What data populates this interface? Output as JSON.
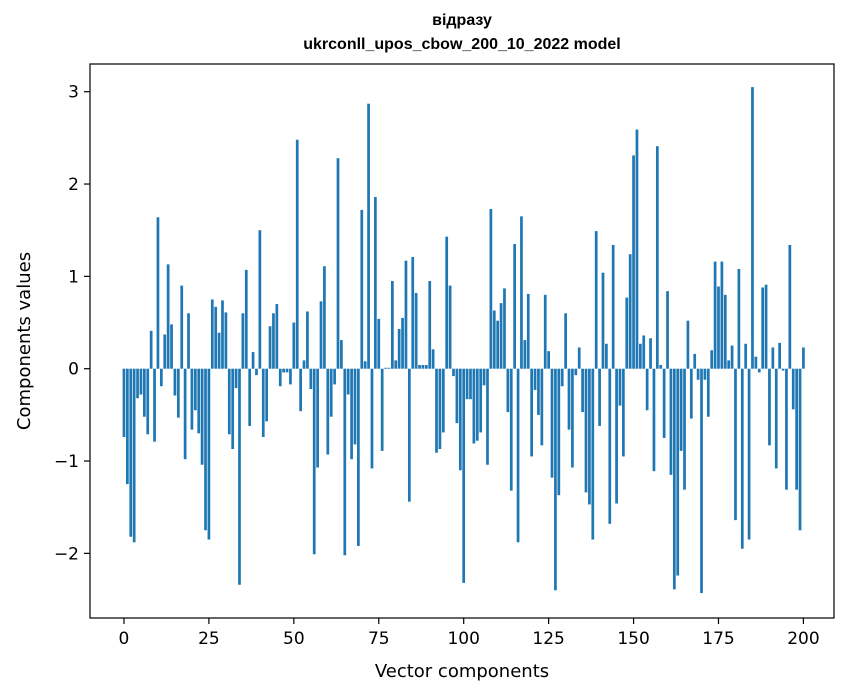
{
  "chart_data": {
    "type": "bar",
    "title_line1": "відразу",
    "title_line2": "ukrconll_upos_cbow_200_10_2022 model",
    "xlabel": "Vector components",
    "ylabel": "Components values",
    "xlim": [
      -10,
      209
    ],
    "ylim": [
      -2.7,
      3.3
    ],
    "xticks": [
      0,
      25,
      50,
      75,
      100,
      125,
      150,
      175,
      200
    ],
    "yticks": [
      -2,
      -1,
      0,
      1,
      2,
      3
    ],
    "ytick_labels": [
      "−2",
      "−1",
      "0",
      "1",
      "2",
      "3"
    ],
    "bar_color": "#1f77b4",
    "grid": false,
    "values": [
      -0.74,
      -1.25,
      -1.82,
      -1.88,
      -0.32,
      -0.28,
      -0.52,
      -0.71,
      0.41,
      -0.79,
      1.64,
      -0.19,
      0.37,
      1.13,
      0.48,
      -0.29,
      -0.53,
      0.9,
      -0.98,
      0.6,
      -0.66,
      -0.45,
      -0.7,
      -1.04,
      -1.75,
      -1.85,
      0.75,
      0.67,
      0.39,
      0.74,
      0.61,
      -0.71,
      -0.87,
      -0.21,
      -2.34,
      0.6,
      1.07,
      -0.62,
      0.18,
      -0.07,
      1.5,
      -0.74,
      -0.57,
      0.46,
      0.6,
      0.7,
      -0.19,
      -0.04,
      -0.04,
      -0.17,
      0.5,
      2.48,
      -0.46,
      0.09,
      0.62,
      -0.22,
      -2.01,
      -1.07,
      0.73,
      1.11,
      -0.93,
      -0.52,
      -0.17,
      2.28,
      0.31,
      -2.02,
      -0.28,
      -0.98,
      -0.82,
      -1.92,
      1.72,
      0.08,
      2.87,
      -1.08,
      1.86,
      0.54,
      -0.89,
      0.01,
      0.01,
      0.95,
      0.09,
      0.43,
      0.55,
      1.17,
      -1.44,
      1.21,
      0.82,
      0.04,
      0.04,
      0.04,
      0.95,
      0.21,
      -0.91,
      -0.87,
      -0.69,
      1.43,
      0.9,
      -0.08,
      -0.59,
      -1.1,
      -2.32,
      -0.33,
      -0.33,
      -0.81,
      -0.78,
      -0.69,
      -0.18,
      -1.04,
      1.73,
      0.63,
      0.52,
      0.71,
      0.87,
      -0.47,
      -1.32,
      1.35,
      -1.88,
      1.65,
      0.31,
      0.81,
      -0.95,
      -0.23,
      -0.5,
      -0.83,
      0.8,
      0.19,
      -1.18,
      -2.4,
      -1.37,
      -0.19,
      0.6,
      -0.66,
      -1.07,
      -0.07,
      0.23,
      -0.47,
      -1.34,
      -1.47,
      -1.85,
      1.49,
      -0.62,
      1.04,
      0.27,
      -1.68,
      1.34,
      -1.46,
      -0.4,
      -0.95,
      0.77,
      1.24,
      2.31,
      2.59,
      0.27,
      0.36,
      -0.45,
      0.33,
      -1.11,
      2.41,
      0.04,
      -0.75,
      0.84,
      -1.15,
      -2.39,
      -2.24,
      -0.89,
      -1.31,
      0.52,
      -0.54,
      0.16,
      -0.12,
      -2.43,
      -0.12,
      -0.52,
      0.2,
      1.16,
      0.89,
      1.16,
      0.8,
      0.09,
      0.25,
      -1.64,
      1.08,
      -1.95,
      0.27,
      -1.85,
      3.05,
      0.13,
      -0.04,
      0.88,
      0.91,
      -0.83,
      0.23,
      -1.08,
      0.28,
      -0.02,
      -1.31,
      1.34,
      -0.44,
      -1.31,
      -1.75,
      0.23
    ]
  }
}
